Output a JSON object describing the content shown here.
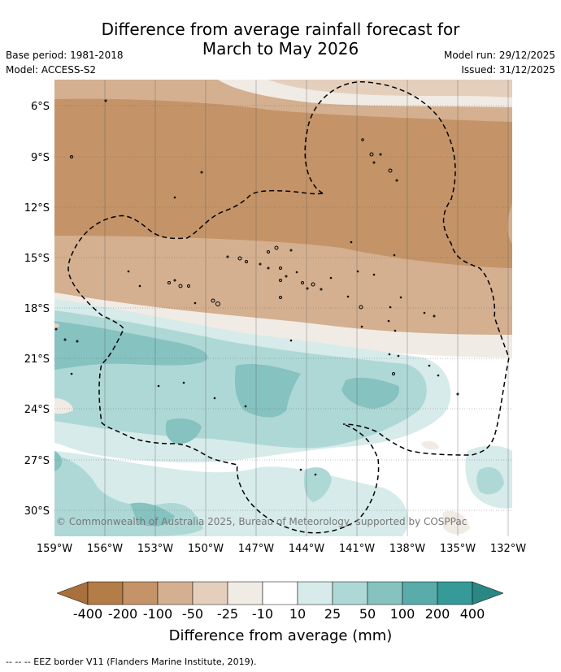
{
  "title_line1": "Difference from average rainfall forecast for",
  "title_line2": "March to May 2026",
  "base_period": "Base period: 1981-2018",
  "model": "Model: ACCESS-S2",
  "model_run": "Model run: 29/12/2025",
  "issued": "Issued: 31/12/2025",
  "copyright": "© Commonwealth of Australia 2025, Bureau of Meteorology, supported by COSPPac",
  "footnote": "--  --  -- EEZ border V11 (Flanders Marine Institute, 2019).",
  "lat_labels": [
    "6°S",
    "9°S",
    "12°S",
    "15°S",
    "18°S",
    "21°S",
    "24°S",
    "27°S",
    "30°S"
  ],
  "lon_labels": [
    "159°W",
    "156°W",
    "153°W",
    "150°W",
    "147°W",
    "144°W",
    "141°W",
    "138°W",
    "135°W",
    "132°W"
  ],
  "colorbar": {
    "title": "Difference from average (mm)",
    "labels": [
      "-400",
      "-200",
      "-100",
      "-50",
      "-25",
      "-10",
      "10",
      "25",
      "50",
      "100",
      "200",
      "400"
    ],
    "colors": [
      "#a8703d",
      "#b47c46",
      "#c49468",
      "#d4b090",
      "#e4cfbd",
      "#f1ebe5",
      "#ffffff",
      "#d6ebea",
      "#aed8d6",
      "#85c2c0",
      "#5aacaa",
      "#369a98",
      "#2a8784"
    ]
  }
}
